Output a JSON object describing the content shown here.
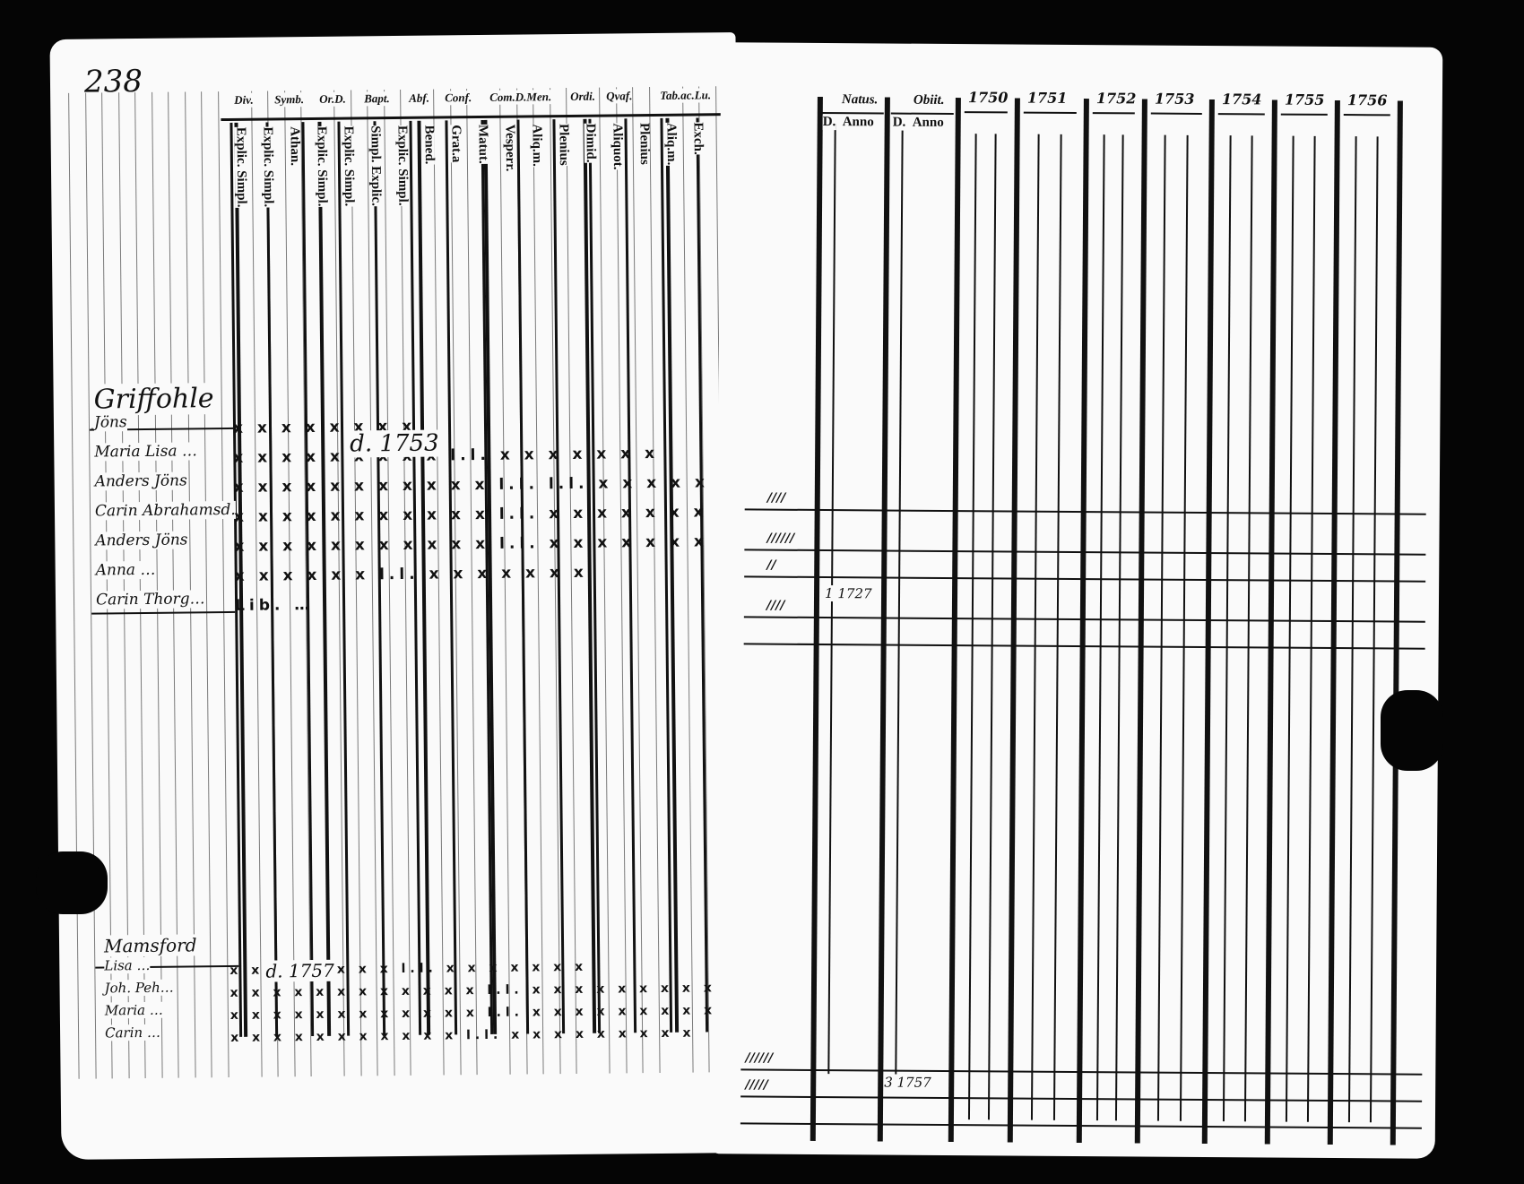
{
  "left_page": {
    "page_number": "238",
    "column_headers": [
      "Div.",
      "Symb.",
      "Or.D.",
      "Bapt.",
      "Abf.",
      "Conf.",
      "Com.D.Men.",
      "Ordi.",
      "Qvaf.",
      "Tab.ac.Lu."
    ],
    "sub_headers": [
      "Explic. Simpl.",
      "Explic. Simpl.",
      "Athan.",
      "Explic. Simpl.",
      "Explic. Simpl.",
      "Simpl. Explic.",
      "Explic. Simpl.",
      "Bened.",
      "Grat.a",
      "Matut.",
      "Vesperr.",
      "Aliq.m.",
      "Plenius",
      "Dimid.",
      "Aliquot.",
      "Plenius",
      "Aliq.m.",
      "Exch."
    ],
    "entries_top": [
      {
        "name": "Griffohle",
        "marks": ""
      },
      {
        "name": "Jöns",
        "marks": "x x x x  x x  x x"
      },
      {
        "name": "Maria Lisa …",
        "marks": "x x x x  x x x x x  l.l.  x x x x x x x"
      },
      {
        "name": "Anders Jöns",
        "marks": "x x x x x x  x x x x x  l.l. l.l.  x x x x x x x"
      },
      {
        "name": "Carin Abrahamsd.",
        "marks": "x x  x x x  x x  x x  x x  l.l.  x x x x x x x"
      },
      {
        "name": "Anders Jöns",
        "marks": "x x x x x  x x x x  x x  l.l.  x x x x x x x"
      },
      {
        "name": "Anna …",
        "marks": "x x x x x x  l.l.  x x x x x x x"
      },
      {
        "name": "Carin Thorg…",
        "marks": "Lib. …"
      }
    ],
    "annotation_top": "d. 1753",
    "entries_bottom": [
      {
        "name": "Mamsford",
        "marks": ""
      },
      {
        "name": "Lisa …",
        "marks": "x x  x x x x x x  l.l.  x x x x x x x"
      },
      {
        "name": "Joh. Peh…",
        "marks": "x x x x x x x x x x x x  l.l.  x x x x x x x x x x"
      },
      {
        "name": "Maria …",
        "marks": "x x x x x x x x x x x x  l.l.  x x x x x x x x x x"
      },
      {
        "name": "Carin …",
        "marks": "x x x x x x x x x x x  l.l.  x x x x x x x x x"
      }
    ],
    "annotation_bottom": "d. 1757"
  },
  "right_page": {
    "natus_label": "Natus.",
    "obiit_label": "Obiit.",
    "d_label": "D.",
    "anno_label": "Anno",
    "years": [
      "1750",
      "1751",
      "1752",
      "1753",
      "1754",
      "1755",
      "1756"
    ],
    "row_tallies": [
      "////",
      "//////",
      "//",
      "////",
      "//////",
      "/////"
    ],
    "birth_note": "1 1727",
    "death_note": "3 1757"
  }
}
